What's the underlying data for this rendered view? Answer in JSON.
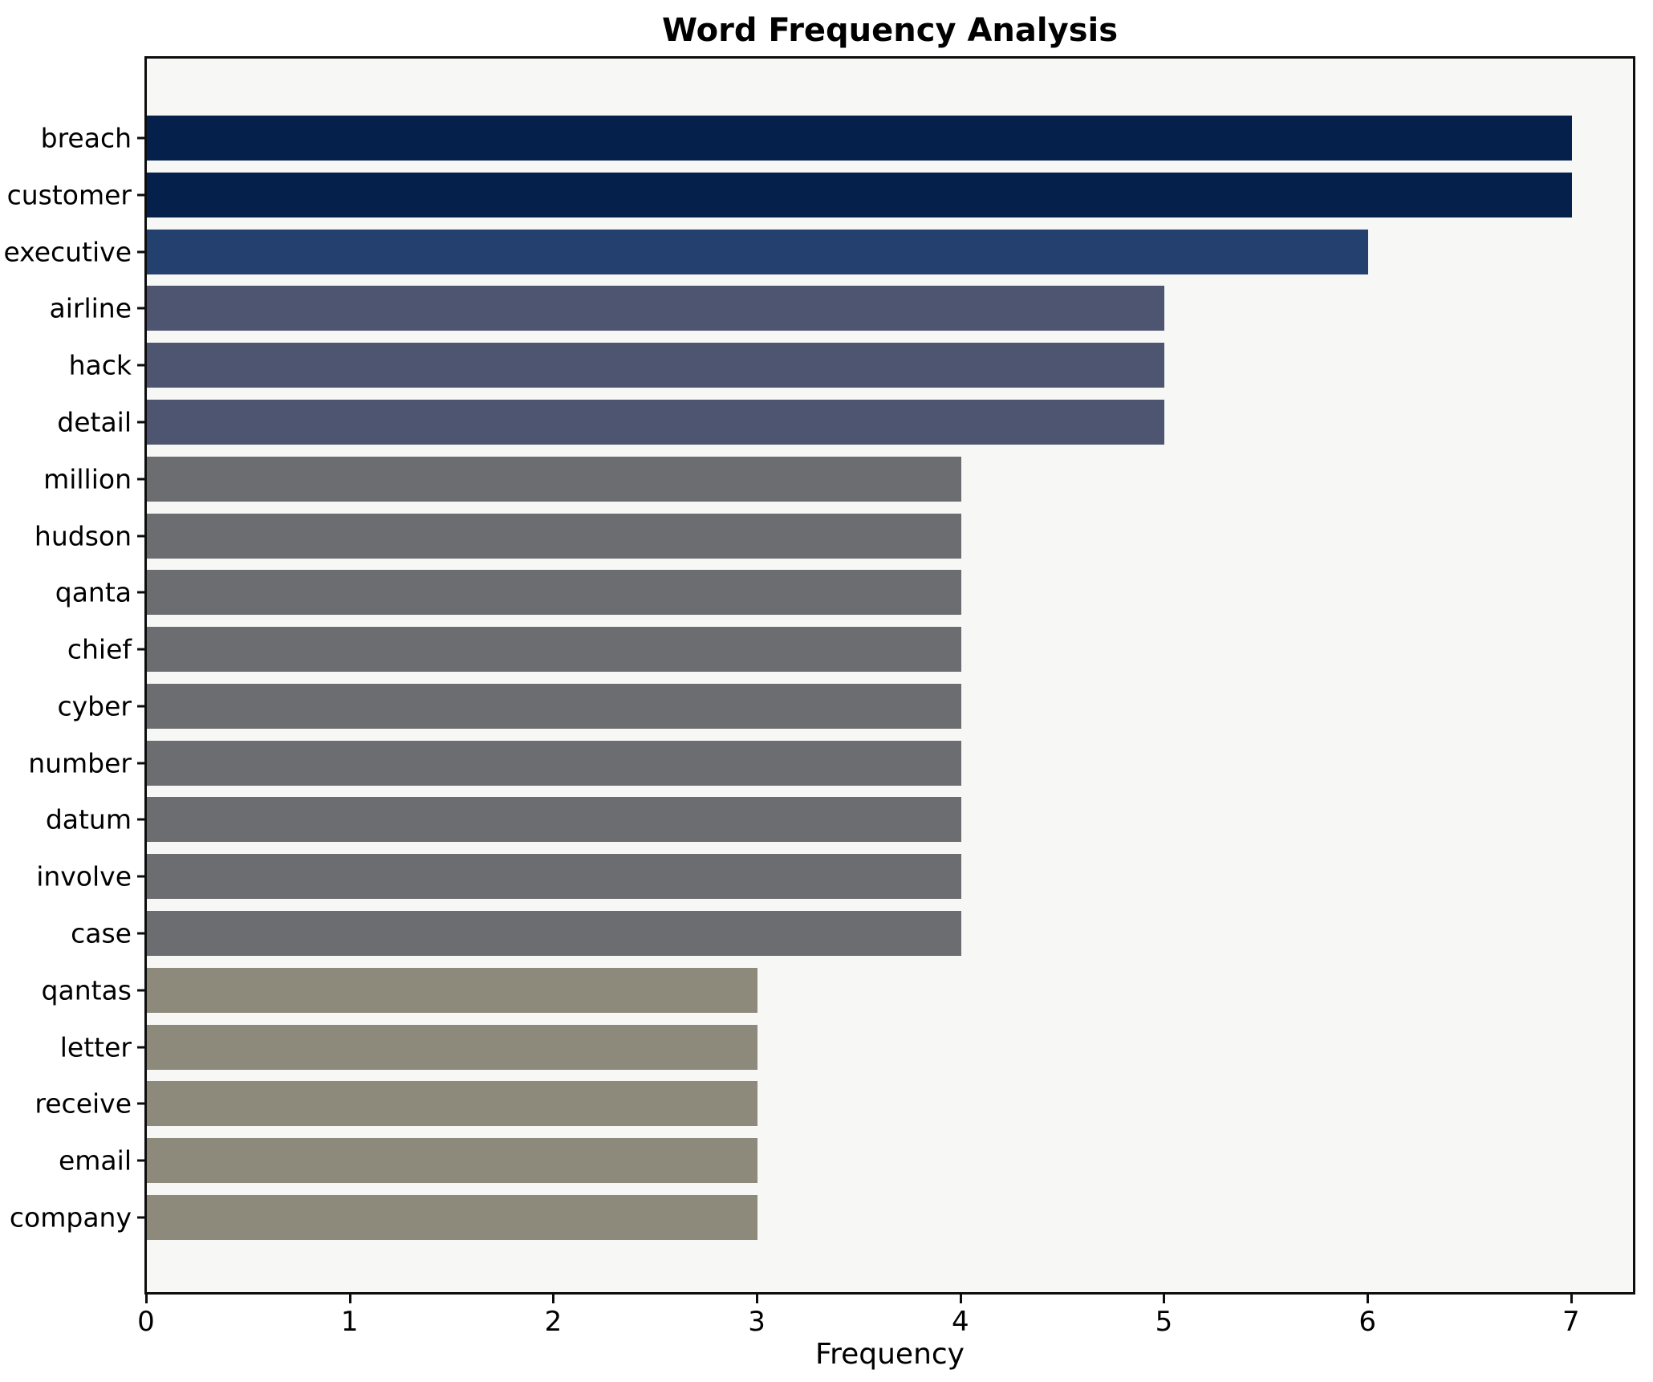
{
  "chart_data": {
    "type": "bar",
    "orientation": "horizontal",
    "title": "Word Frequency Analysis",
    "xlabel": "Frequency",
    "ylabel": "",
    "categories": [
      "breach",
      "customer",
      "executive",
      "airline",
      "hack",
      "detail",
      "million",
      "hudson",
      "qanta",
      "chief",
      "cyber",
      "number",
      "datum",
      "involve",
      "case",
      "qantas",
      "letter",
      "receive",
      "email",
      "company"
    ],
    "values": [
      7,
      7,
      6,
      5,
      5,
      5,
      4,
      4,
      4,
      4,
      4,
      4,
      4,
      4,
      4,
      3,
      3,
      3,
      3,
      3
    ],
    "bar_colors": [
      "#05214b",
      "#05214b",
      "#24406e",
      "#4d5570",
      "#4d5570",
      "#4d5570",
      "#6c6d71",
      "#6c6d71",
      "#6c6d71",
      "#6c6d71",
      "#6c6d71",
      "#6c6d71",
      "#6c6d71",
      "#6c6d71",
      "#6c6d71",
      "#8e8a7b",
      "#8e8a7b",
      "#8e8a7b",
      "#8e8a7b",
      "#8e8a7b"
    ],
    "x_ticks": [
      "0",
      "1",
      "2",
      "3",
      "4",
      "5",
      "6",
      "7"
    ],
    "xlim": [
      0,
      7.3
    ],
    "grid": false,
    "legend_position": "none",
    "plot_bg": "#f7f7f6",
    "figure_bg": "#ffffff",
    "spine_color": "#0d0d0d",
    "text_color": "#000000"
  }
}
